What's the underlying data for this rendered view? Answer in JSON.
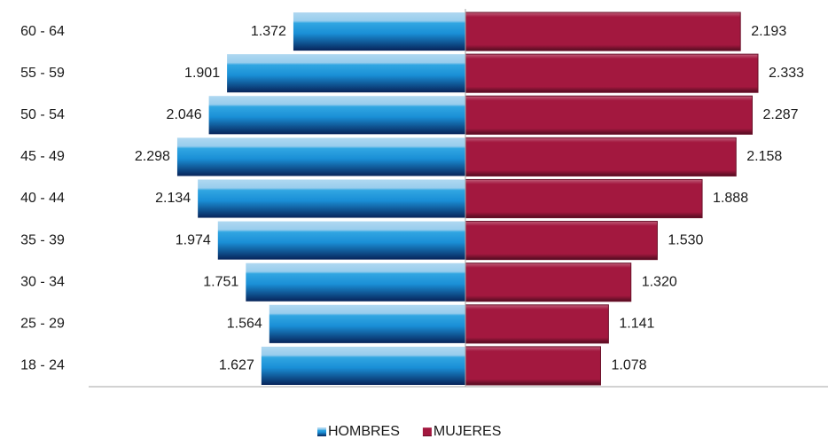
{
  "chart_data": {
    "type": "pyramid",
    "categories": [
      "60 - 64",
      "55 - 59",
      "50 - 54",
      "45 - 49",
      "40 - 44",
      "35 - 39",
      "30 - 34",
      "25 - 29",
      "18 - 24"
    ],
    "series": [
      {
        "name": "HOMBRES",
        "color": "#1a8fd6",
        "values": [
          1372,
          1901,
          2046,
          2298,
          2134,
          1974,
          1751,
          1564,
          1627
        ],
        "value_labels": [
          "1.372",
          "1.901",
          "2.046",
          "2.298",
          "2.134",
          "1.974",
          "1.751",
          "1.564",
          "1.627"
        ]
      },
      {
        "name": "MUJERES",
        "color": "#a3183f",
        "values": [
          2193,
          2333,
          2287,
          2158,
          1888,
          1530,
          1320,
          1141,
          1078
        ],
        "value_labels": [
          "2.193",
          "2.333",
          "2.287",
          "2.158",
          "1.888",
          "1.530",
          "1.320",
          "1.141",
          "1.078"
        ]
      }
    ],
    "legend": "bottom"
  }
}
